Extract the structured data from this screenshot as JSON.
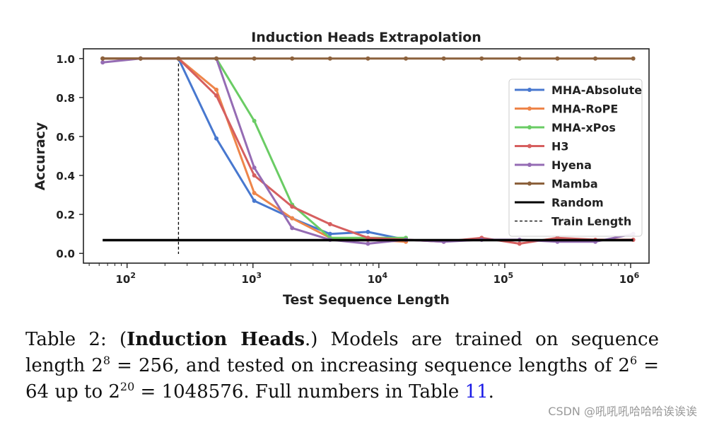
{
  "chart_data": {
    "type": "line",
    "title": "Induction Heads Extrapolation",
    "xlabel": "Test Sequence Length",
    "ylabel": "Accuracy",
    "x_scale": "log",
    "xlim": [
      45,
      1400000
    ],
    "ylim": [
      -0.05,
      1.05
    ],
    "x_ticks": [
      {
        "value": 100,
        "base": "10",
        "exp": "2"
      },
      {
        "value": 1000,
        "base": "10",
        "exp": "3"
      },
      {
        "value": 10000,
        "base": "10",
        "exp": "4"
      },
      {
        "value": 100000,
        "base": "10",
        "exp": "5"
      },
      {
        "value": 1000000,
        "base": "10",
        "exp": "6"
      }
    ],
    "y_ticks": [
      "0.0",
      "0.2",
      "0.4",
      "0.6",
      "0.8",
      "1.0"
    ],
    "legend_position": "right",
    "series": [
      {
        "name": "MHA-Absolute",
        "color": "#4878cf",
        "marker": true,
        "x": [
          64,
          128,
          256,
          512,
          1024,
          2048,
          4096,
          8192,
          16384
        ],
        "y": [
          1.0,
          1.0,
          1.0,
          0.59,
          0.27,
          0.18,
          0.1,
          0.11,
          0.07
        ]
      },
      {
        "name": "MHA-RoPE",
        "color": "#ee854a",
        "marker": true,
        "x": [
          64,
          128,
          256,
          512,
          1024,
          2048,
          4096,
          8192,
          16384
        ],
        "y": [
          1.0,
          1.0,
          1.0,
          0.84,
          0.31,
          0.18,
          0.08,
          0.07,
          0.06
        ]
      },
      {
        "name": "MHA-xPos",
        "color": "#6acc64",
        "marker": true,
        "x": [
          64,
          128,
          256,
          512,
          1024,
          2048,
          4096,
          8192,
          16384
        ],
        "y": [
          1.0,
          1.0,
          1.0,
          1.0,
          0.68,
          0.25,
          0.08,
          0.08,
          0.08
        ]
      },
      {
        "name": "H3",
        "color": "#d65f5f",
        "marker": true,
        "x": [
          64,
          128,
          256,
          512,
          1024,
          2048,
          4096,
          8192,
          16384,
          32768,
          65536,
          131072,
          262144,
          524288,
          1048576
        ],
        "y": [
          1.0,
          1.0,
          1.0,
          0.81,
          0.4,
          0.24,
          0.15,
          0.08,
          0.07,
          0.06,
          0.08,
          0.05,
          0.08,
          0.07,
          0.07
        ]
      },
      {
        "name": "Hyena",
        "color": "#956cb4",
        "marker": true,
        "x": [
          64,
          128,
          256,
          512,
          1024,
          2048,
          4096,
          8192,
          16384,
          32768,
          65536,
          131072,
          262144,
          524288,
          1048576
        ],
        "y": [
          0.98,
          1.0,
          1.0,
          1.0,
          0.44,
          0.13,
          0.07,
          0.05,
          0.07,
          0.06,
          0.07,
          0.07,
          0.06,
          0.06,
          0.1
        ]
      },
      {
        "name": "Mamba",
        "color": "#8c613c",
        "marker": true,
        "x": [
          64,
          128,
          256,
          512,
          1024,
          2048,
          4096,
          8192,
          16384,
          32768,
          65536,
          131072,
          262144,
          524288,
          1048576
        ],
        "y": [
          1.0,
          1.0,
          1.0,
          1.0,
          1.0,
          1.0,
          1.0,
          1.0,
          1.0,
          1.0,
          1.0,
          1.0,
          1.0,
          1.0,
          1.0
        ]
      },
      {
        "name": "Random",
        "color": "#000000",
        "marker": false,
        "style": "thick",
        "x": [
          64,
          1048576
        ],
        "y": [
          0.068,
          0.068
        ]
      }
    ],
    "vline": {
      "name": "Train Length",
      "x": 256,
      "color": "#000000",
      "style": "dashed"
    }
  },
  "caption": {
    "prefix": "Table 2: (",
    "bold": "Induction Heads",
    "after_bold": ".)  Models are trained on sequence length 2",
    "sup1": "8",
    "part2": " = 256, and tested on increasing sequence lengths of 2",
    "sup2": "6",
    "part3": " = 64 up to 2",
    "sup3": "20",
    "part4": " = 1048576. Full numbers in Table ",
    "ref": "11",
    "end": "."
  },
  "watermark": "CSDN @吼吼吼哈哈哈诶诶诶"
}
